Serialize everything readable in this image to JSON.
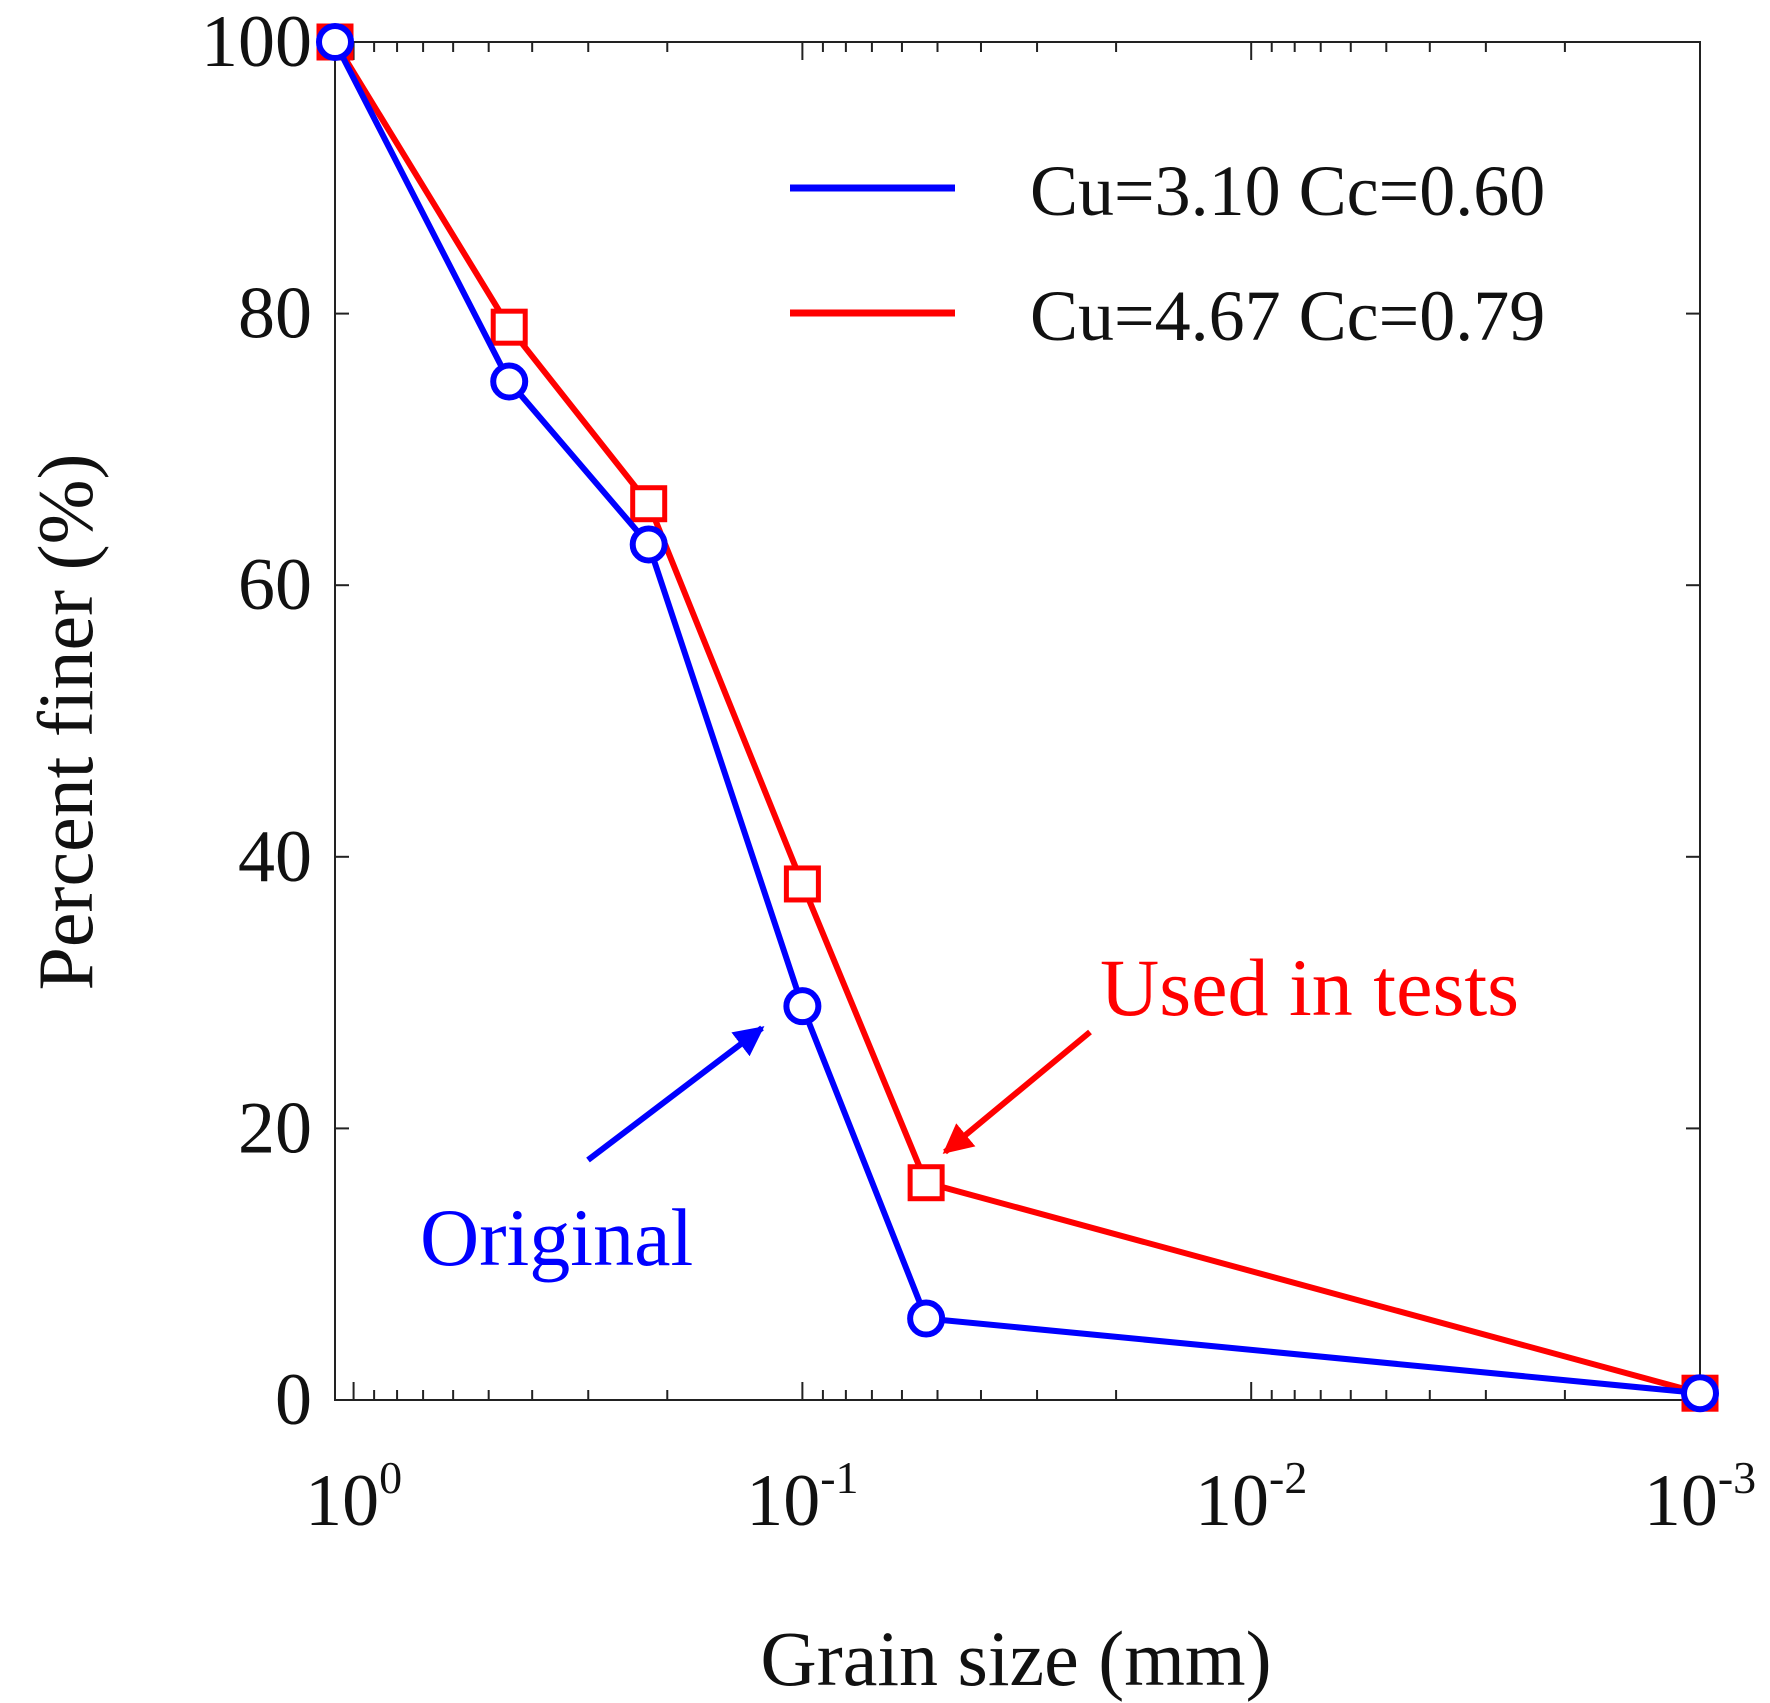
{
  "chart_data": {
    "type": "line",
    "x_scale": "log",
    "x_reversed": true,
    "xlim": [
      1.1,
      0.001
    ],
    "ylim": [
      0,
      100
    ],
    "xlabel": "Grain size (mm)",
    "ylabel": "Percent finer (%)",
    "y_ticks": [
      0,
      20,
      40,
      60,
      80,
      100
    ],
    "y_tick_labels": [
      "0",
      "20",
      "40",
      "60",
      "80",
      "100"
    ],
    "x_ticks": [
      {
        "value": 1,
        "base": "10",
        "exp": "0"
      },
      {
        "value": 0.1,
        "base": "10",
        "exp": "-1"
      },
      {
        "value": 0.01,
        "base": "10",
        "exp": "-2"
      },
      {
        "value": 0.001,
        "base": "10",
        "exp": "-3"
      }
    ],
    "legend_position": "top-right",
    "series": [
      {
        "name": "Cu=3.10 Cc=0.60",
        "color": "#0000ff",
        "marker": "circle",
        "x": [
          1.1,
          0.45,
          0.22,
          0.1,
          0.053,
          0.001
        ],
        "y": [
          100,
          75,
          63,
          29,
          6,
          0.5
        ]
      },
      {
        "name": "Cu=4.67 Cc=0.79",
        "color": "#ff0000",
        "marker": "square",
        "x": [
          1.1,
          0.45,
          0.22,
          0.1,
          0.053,
          0.001
        ],
        "y": [
          100,
          79,
          66,
          38,
          16,
          0.5
        ]
      }
    ],
    "annotations": [
      {
        "text": "Original",
        "color": "#0000ff",
        "points_to_series": 0,
        "points_to_index": 3
      },
      {
        "text": "Used in tests",
        "color": "#ff0000",
        "points_to_series": 1,
        "points_to_index": 4
      }
    ]
  }
}
